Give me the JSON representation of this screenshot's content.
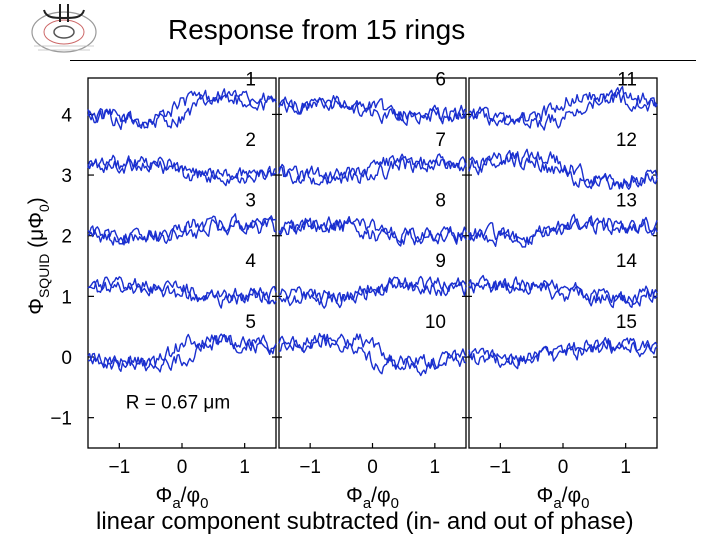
{
  "header": {
    "title": "Response from 15 rings"
  },
  "footer": {
    "caption": "linear component subtracted (in- and out of phase)"
  },
  "colors": {
    "trace": "#1a2fcf",
    "axis": "#000000",
    "background": "#ffffff"
  },
  "chart_data": {
    "type": "line",
    "panels": 3,
    "ylabel_main": "Φ",
    "ylabel_sub": "SQUID",
    "ylabel_unit": "(μΦ",
    "ylabel_unit_sub": "0",
    "ylabel_close": ")",
    "xlabel_main": "Φ",
    "xlabel_sub": "a",
    "xlabel_slash": "/φ",
    "xlabel_sub2": "0",
    "xlim": [
      -1.5,
      1.5
    ],
    "ylim": [
      -1.5,
      4.6
    ],
    "xticks": [
      -1,
      0,
      1
    ],
    "xtick_labels": [
      "−1",
      "0",
      "1"
    ],
    "yticks": [
      4,
      3,
      2,
      1,
      0,
      -1
    ],
    "ytick_labels": [
      "4",
      "3",
      "2",
      "1",
      "0",
      "−1"
    ],
    "annotation": "R = 0.67 μm",
    "rings": [
      {
        "label": "1",
        "panel": 0,
        "offset": 4
      },
      {
        "label": "2",
        "panel": 0,
        "offset": 3
      },
      {
        "label": "3",
        "panel": 0,
        "offset": 2
      },
      {
        "label": "4",
        "panel": 0,
        "offset": 1
      },
      {
        "label": "5",
        "panel": 0,
        "offset": 0
      },
      {
        "label": "6",
        "panel": 1,
        "offset": 4
      },
      {
        "label": "7",
        "panel": 1,
        "offset": 3
      },
      {
        "label": "8",
        "panel": 1,
        "offset": 2
      },
      {
        "label": "9",
        "panel": 1,
        "offset": 1
      },
      {
        "label": "10",
        "panel": 1,
        "offset": 0
      },
      {
        "label": "11",
        "panel": 2,
        "offset": 4
      },
      {
        "label": "12",
        "panel": 2,
        "offset": 3
      },
      {
        "label": "13",
        "panel": 2,
        "offset": 2
      },
      {
        "label": "14",
        "panel": 2,
        "offset": 1
      },
      {
        "label": "15",
        "panel": 2,
        "offset": 0
      }
    ]
  }
}
